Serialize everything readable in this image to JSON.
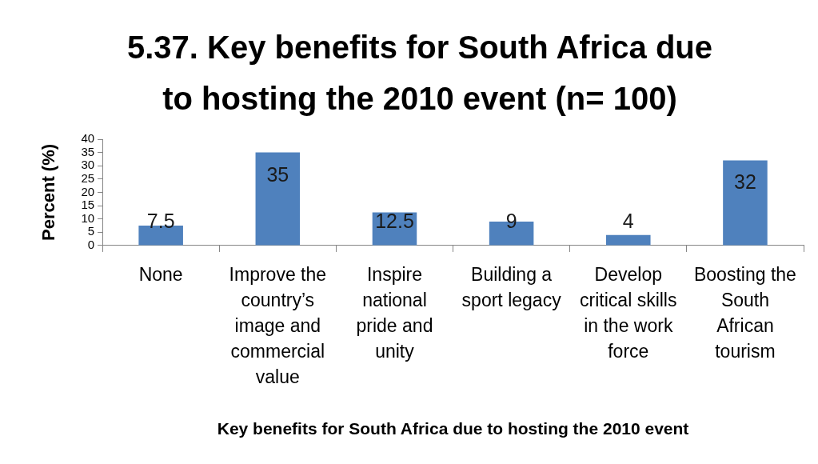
{
  "chart_data": {
    "type": "bar",
    "title": "5.37. Key benefits for South Africa due to hosting the 2010 event (n= 100)",
    "xlabel": "Key benefits for South Africa due to hosting the 2010 event",
    "ylabel": "Percent (%)",
    "categories": [
      "None",
      "Improve the country’s image and commercial value",
      "Inspire national pride and unity",
      "Building a sport legacy",
      "Develop critical skills in the work force",
      "Boosting the South African tourism"
    ],
    "values": [
      7.5,
      35,
      12.5,
      9,
      4,
      32
    ],
    "color": "#4f81bd",
    "ylim": [
      0,
      40
    ],
    "yticks": [
      0,
      5,
      10,
      15,
      20,
      25,
      30,
      35,
      40
    ],
    "data_labels": true,
    "grid": false,
    "legend": false
  }
}
